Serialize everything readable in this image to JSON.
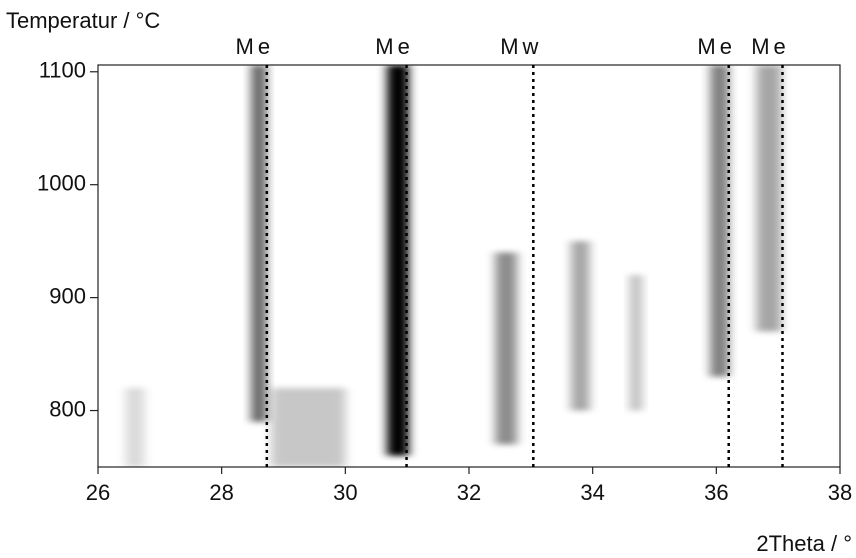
{
  "chart_data": {
    "type": "heatmap",
    "title": "Temperatur / °C",
    "x_label": "2Theta / °",
    "xlim": [
      26,
      38
    ],
    "xticks": [
      26,
      28,
      30,
      32,
      34,
      36,
      38
    ],
    "ylim": [
      750,
      1106
    ],
    "yticks": [
      800,
      900,
      1000,
      1100
    ],
    "color": "#000000",
    "bands": [
      {
        "x": 26.6,
        "width": 0.3,
        "ymin": 750,
        "ymax": 820,
        "intensity": 0.15
      },
      {
        "x": 28.6,
        "width": 0.25,
        "ymin": 790,
        "ymax": 1106,
        "intensity": 0.6
      },
      {
        "x": 29.4,
        "width": 1.2,
        "ymin": 750,
        "ymax": 820,
        "intensity": 0.22
      },
      {
        "x": 30.85,
        "width": 0.35,
        "ymin": 760,
        "ymax": 1106,
        "intensity": 1
      },
      {
        "x": 32.6,
        "width": 0.35,
        "ymin": 770,
        "ymax": 940,
        "intensity": 0.45
      },
      {
        "x": 33.8,
        "width": 0.3,
        "ymin": 800,
        "ymax": 950,
        "intensity": 0.35
      },
      {
        "x": 34.7,
        "width": 0.2,
        "ymin": 800,
        "ymax": 920,
        "intensity": 0.25
      },
      {
        "x": 36.05,
        "width": 0.3,
        "ymin": 830,
        "ymax": 1106,
        "intensity": 0.5
      },
      {
        "x": 36.85,
        "width": 0.4,
        "ymin": 870,
        "ymax": 1106,
        "intensity": 0.35
      }
    ],
    "references": [
      {
        "x": 28.73,
        "label": "Me"
      },
      {
        "x": 30.99,
        "label": "Me"
      },
      {
        "x": 33.04,
        "label": "Mw"
      },
      {
        "x": 36.2,
        "label": "Me"
      },
      {
        "x": 37.07,
        "label": "Me"
      }
    ]
  }
}
